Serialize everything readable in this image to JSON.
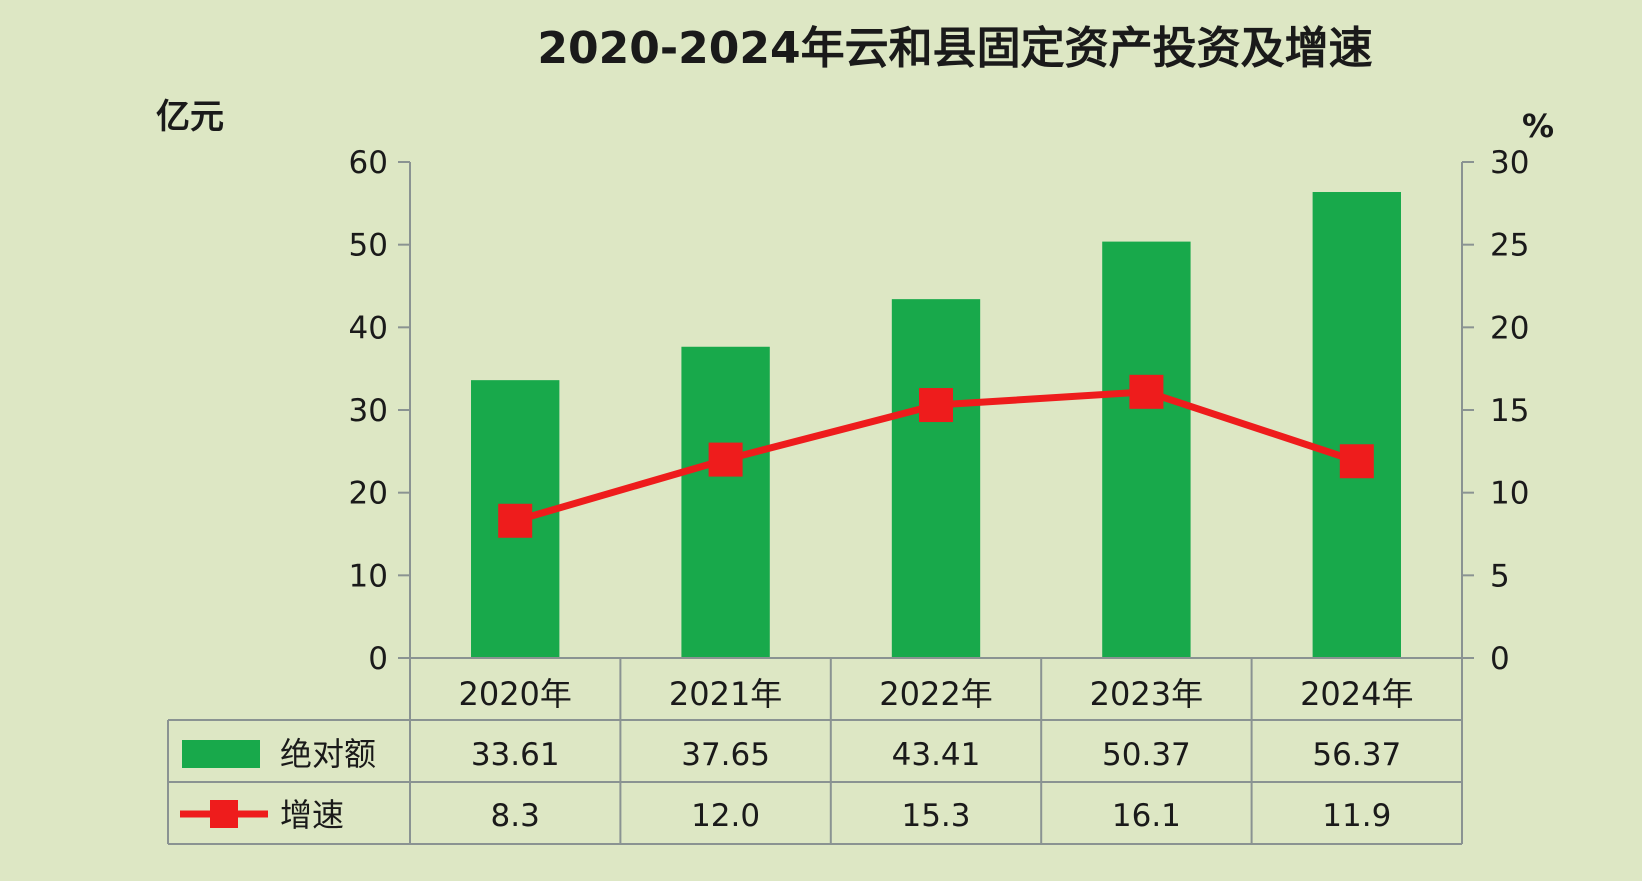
{
  "chart_data": {
    "type": "bar",
    "title": "2020-2024年云和县固定资产投资及增速",
    "left_unit": "亿元",
    "right_unit": "%",
    "categories": [
      "2020年",
      "2021年",
      "2022年",
      "2023年",
      "2024年"
    ],
    "left_ylim": [
      0,
      60
    ],
    "left_ticks": [
      "0",
      "10",
      "20",
      "30",
      "40",
      "50",
      "60"
    ],
    "right_ylim": [
      0,
      30
    ],
    "right_ticks": [
      "0",
      "5",
      "10",
      "15",
      "20",
      "25",
      "30"
    ],
    "grid": false,
    "legend": "data-table",
    "series": [
      {
        "name": "绝对额",
        "type": "bar",
        "axis": "left",
        "color": "#18a94b",
        "values": [
          33.61,
          37.65,
          43.41,
          50.37,
          56.37
        ],
        "labels": [
          "33.61",
          "37.65",
          "43.41",
          "50.37",
          "56.37"
        ]
      },
      {
        "name": "增速",
        "type": "line",
        "axis": "right",
        "color": "#ee1c1c",
        "values": [
          8.3,
          12.0,
          15.3,
          16.1,
          11.9
        ],
        "labels": [
          "8.3",
          "12.0",
          "15.3",
          "16.1",
          "11.9"
        ]
      }
    ]
  }
}
